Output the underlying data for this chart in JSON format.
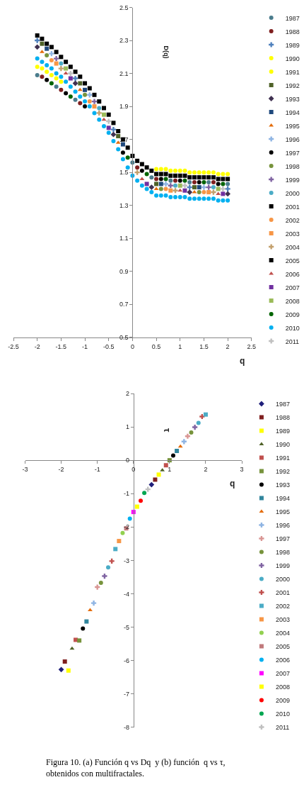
{
  "chart_data": [
    {
      "type": "scatter",
      "xlabel": "q",
      "ylabel": "D(q)",
      "xlim": [
        -2.5,
        2.5
      ],
      "ylim": [
        0.5,
        2.5
      ],
      "xticks": [
        -2.5,
        -2,
        -1.5,
        -1,
        -0.5,
        0,
        0.5,
        1,
        1.5,
        2,
        2.5
      ],
      "yticks": [
        0.5,
        0.7,
        0.9,
        1.1,
        1.3,
        1.5,
        1.7,
        1.9,
        2.1,
        2.3,
        2.5
      ],
      "legend": "right",
      "x": [
        -2,
        -1.9,
        -1.8,
        -1.7,
        -1.6,
        -1.5,
        -1.4,
        -1.3,
        -1.2,
        -1.1,
        -1,
        -0.9,
        -0.8,
        -0.7,
        -0.6,
        -0.5,
        -0.4,
        -0.3,
        -0.2,
        -0.1,
        0,
        0.1,
        0.2,
        0.3,
        0.4,
        0.5,
        0.6,
        0.7,
        0.8,
        0.9,
        1,
        1.1,
        1.2,
        1.3,
        1.4,
        1.5,
        1.6,
        1.7,
        1.8,
        1.9,
        2
      ],
      "series": [
        {
          "name": "1987",
          "color": "#4a7c8c",
          "marker": "circle",
          "x": [
            -2,
            -1.6,
            -1.2,
            0,
            0.4,
            0.8,
            1.2,
            1.6,
            2
          ],
          "values": [
            2.09,
            2.02,
            1.94,
            1.56,
            1.47,
            1.45,
            1.44,
            1.44,
            1.43
          ]
        },
        {
          "name": "1988",
          "color": "#7f1f1f",
          "marker": "circle",
          "x": [
            -1.9,
            -1.5,
            -1.1,
            0.1,
            0.5,
            0.9,
            1.3,
            1.7
          ],
          "values": [
            2.08,
            2.0,
            1.92,
            1.53,
            1.46,
            1.45,
            1.44,
            1.44
          ]
        },
        {
          "name": "1989",
          "color": "#4f81bd",
          "marker": "cross",
          "x": [
            -2,
            -1.2,
            -0.4,
            1.2,
            2
          ],
          "values": [
            2.3,
            2.07,
            1.76,
            1.41,
            1.4
          ]
        },
        {
          "name": "1990",
          "color": "#ffff00",
          "marker": "circle",
          "x": [
            -2,
            -1.8,
            -1.6,
            0.6,
            0.8,
            1,
            1.2,
            1.4,
            1.6,
            1.8,
            2
          ],
          "values": [
            2.14,
            2.11,
            2.07,
            1.52,
            1.51,
            1.51,
            1.5,
            1.5,
            1.5,
            1.49,
            1.49
          ]
        },
        {
          "name": "1991",
          "color": "#ffff00",
          "marker": "circle",
          "x": [
            -1.9,
            -1.7,
            -1.5,
            0.5,
            0.7,
            0.9,
            1.1,
            1.3,
            1.5,
            1.7,
            1.9
          ],
          "values": [
            2.13,
            2.09,
            2.05,
            1.52,
            1.52,
            1.51,
            1.51,
            1.5,
            1.5,
            1.5,
            1.49
          ]
        },
        {
          "name": "1992",
          "color": "#4f6228",
          "marker": "square",
          "x": [
            -1.9,
            -1.1,
            -0.3,
            0.5,
            1.3
          ],
          "values": [
            2.28,
            2.04,
            1.72,
            1.43,
            1.41
          ]
        },
        {
          "name": "1993",
          "color": "#403151",
          "marker": "diamond",
          "x": [
            -2,
            -1.2,
            -0.4,
            0.4,
            1.2,
            2
          ],
          "values": [
            2.26,
            2.04,
            1.73,
            1.41,
            1.38,
            1.37
          ]
        },
        {
          "name": "1994",
          "color": "#1f497d",
          "marker": "square",
          "x": [
            -1.8,
            -1,
            -0.2,
            0.6,
            1.4
          ],
          "values": [
            2.25,
            2.0,
            1.67,
            1.43,
            1.41
          ]
        },
        {
          "name": "1995",
          "color": "#e46c0a",
          "marker": "triangle",
          "x": [
            -1.9,
            -1.1,
            -0.3,
            0.5,
            1.3
          ],
          "values": [
            2.23,
            2.0,
            1.68,
            1.4,
            1.38
          ]
        },
        {
          "name": "1996",
          "color": "#8eb4e3",
          "marker": "cross",
          "x": [
            -1.7,
            -0.9,
            0.7,
            1.5
          ],
          "values": [
            2.22,
            1.97,
            1.43,
            1.41
          ]
        },
        {
          "name": "1997",
          "color": "#000000",
          "marker": "circle",
          "x": [
            -1.8,
            -1.4,
            -1,
            -0.2,
            0.2,
            0.6,
            1,
            1.4,
            1.8
          ],
          "values": [
            2.06,
            1.98,
            1.9,
            1.62,
            1.51,
            1.46,
            1.45,
            1.44,
            1.43
          ]
        },
        {
          "name": "1998",
          "color": "#77933c",
          "marker": "circle",
          "x": [
            -1.8,
            -1,
            0.6,
            1.4
          ],
          "values": [
            2.21,
            1.97,
            1.4,
            1.38
          ]
        },
        {
          "name": "1999",
          "color": "#8064a2",
          "marker": "cross",
          "x": [
            -1.6,
            -0.8,
            0.8,
            1.6
          ],
          "values": [
            2.19,
            1.93,
            1.42,
            1.41
          ]
        },
        {
          "name": "2000",
          "color": "#4bacc6",
          "marker": "circle",
          "x": [
            -1.5,
            -0.7,
            0.9,
            1.7
          ],
          "values": [
            2.16,
            1.89,
            1.42,
            1.41
          ]
        },
        {
          "name": "2001",
          "color": "#000000",
          "marker": "square",
          "x": [
            -2,
            -1.8,
            -1.6,
            -1.4,
            -1.2,
            -1,
            -0.8,
            -0.6,
            -0.4,
            -0.2,
            0,
            0.2,
            0.4,
            0.6,
            0.8,
            1,
            1.2,
            1.4,
            1.6,
            1.8,
            2
          ],
          "values": [
            2.33,
            2.28,
            2.23,
            2.17,
            2.11,
            2.04,
            1.97,
            1.89,
            1.8,
            1.7,
            1.6,
            1.55,
            1.51,
            1.49,
            1.48,
            1.48,
            1.47,
            1.47,
            1.47,
            1.46,
            1.46
          ]
        },
        {
          "name": "2002",
          "color": "#f79646",
          "marker": "circle",
          "x": [
            -1.7,
            -0.9,
            0.7,
            1.5
          ],
          "values": [
            2.18,
            1.93,
            1.4,
            1.38
          ]
        },
        {
          "name": "2003",
          "color": "#f79646",
          "marker": "square",
          "x": [
            -1.6,
            -0.8,
            0.8,
            1.6
          ],
          "values": [
            2.16,
            1.9,
            1.39,
            1.38
          ]
        },
        {
          "name": "2004",
          "color": "#c3a06c",
          "marker": "cross",
          "x": [
            -1.5,
            -0.7,
            0.1,
            0.9,
            1.7
          ],
          "values": [
            2.13,
            1.86,
            1.5,
            1.39,
            1.38
          ]
        },
        {
          "name": "2005",
          "color": "#000000",
          "marker": "square",
          "x": [
            -1.9,
            -1.7,
            -1.5,
            -1.3,
            -1.1,
            -0.9,
            -0.7,
            -0.5,
            -0.3,
            -0.1,
            0.1,
            0.3,
            0.5,
            0.7,
            0.9,
            1.1,
            1.3,
            1.5,
            1.7,
            1.9
          ],
          "values": [
            2.31,
            2.26,
            2.2,
            2.14,
            2.08,
            2.01,
            1.93,
            1.85,
            1.75,
            1.65,
            1.57,
            1.53,
            1.49,
            1.49,
            1.48,
            1.48,
            1.47,
            1.47,
            1.47,
            1.46
          ]
        },
        {
          "name": "2006",
          "color": "#c0504d",
          "marker": "triangle",
          "x": [
            -1.4,
            -0.6,
            0.2,
            1,
            1.8
          ],
          "values": [
            2.1,
            1.82,
            1.46,
            1.39,
            1.37
          ]
        },
        {
          "name": "2007",
          "color": "#7030a0",
          "marker": "square",
          "x": [
            -1.3,
            -0.5,
            0.3,
            1.1,
            1.9
          ],
          "values": [
            2.07,
            1.77,
            1.43,
            1.39,
            1.37
          ]
        },
        {
          "name": "2008",
          "color": "#9bbb59",
          "marker": "square",
          "x": [
            -1.4,
            -0.6,
            1,
            1.8
          ],
          "values": [
            2.13,
            1.85,
            1.42,
            1.4
          ]
        },
        {
          "name": "2009",
          "color": "#006400",
          "marker": "circle",
          "x": [
            -1.7,
            -1.3,
            -0.1,
            0.3,
            0.7,
            1.1,
            1.5,
            1.9
          ],
          "values": [
            2.04,
            1.96,
            1.59,
            1.49,
            1.46,
            1.45,
            1.44,
            1.43
          ]
        },
        {
          "name": "2010",
          "color": "#00b0f0",
          "marker": "circle",
          "values": [
            2.19,
            2.17,
            2.15,
            2.13,
            2.1,
            2.08,
            2.05,
            2.02,
            1.99,
            1.96,
            1.93,
            1.9,
            1.86,
            1.82,
            1.78,
            1.74,
            1.69,
            1.64,
            1.58,
            1.53,
            1.48,
            1.45,
            1.42,
            1.4,
            1.38,
            1.36,
            1.36,
            1.36,
            1.35,
            1.35,
            1.35,
            1.35,
            1.34,
            1.34,
            1.34,
            1.34,
            1.34,
            1.34,
            1.33,
            1.33,
            1.33
          ]
        },
        {
          "name": "2011",
          "color": "#c0c0c0",
          "marker": "cross",
          "x": [
            -1.3,
            -0.5,
            1.1,
            1.9
          ],
          "values": [
            2.1,
            1.81,
            1.42,
            1.4
          ]
        }
      ]
    },
    {
      "type": "scatter",
      "xlabel": "q",
      "ylabel": "τ",
      "xlim": [
        -3,
        3
      ],
      "ylim": [
        -8,
        2
      ],
      "xticks": [
        -3,
        -2,
        -1,
        0,
        1,
        2,
        3
      ],
      "yticks": [
        -8,
        -7,
        -6,
        -5,
        -4,
        -3,
        -2,
        -1,
        0,
        1,
        2
      ],
      "legend": "right",
      "annotations": [
        "Figura 10. (a) Función q vs Dq  y (b) función  q vs τ, obtenidos con multifractales."
      ],
      "series": [
        {
          "name": "1987",
          "color": "#1f1f7a",
          "marker": "diamond",
          "x": [
            -2,
            0.5
          ],
          "values": [
            -6.27,
            -0.73
          ]
        },
        {
          "name": "1988",
          "color": "#7f1f1f",
          "marker": "square",
          "x": [
            -1.9,
            0.6
          ],
          "values": [
            -6.03,
            -0.58
          ]
        },
        {
          "name": "1989",
          "color": "#ffff00",
          "marker": "square",
          "x": [
            -1.8,
            0.7
          ],
          "values": [
            -6.3,
            -0.43
          ]
        },
        {
          "name": "1990",
          "color": "#4f6228",
          "marker": "triangle",
          "x": [
            -1.7,
            0.8
          ],
          "values": [
            -5.64,
            -0.3
          ]
        },
        {
          "name": "1991",
          "color": "#c0504d",
          "marker": "square",
          "x": [
            -1.6,
            0.9
          ],
          "values": [
            -5.38,
            -0.15
          ]
        },
        {
          "name": "1992",
          "color": "#77933c",
          "marker": "square",
          "x": [
            -1.5,
            1
          ],
          "values": [
            -5.4,
            0
          ]
        },
        {
          "name": "1993",
          "color": "#000000",
          "marker": "circle",
          "x": [
            -1.4,
            1.1
          ],
          "values": [
            -5.04,
            0.14
          ]
        },
        {
          "name": "1994",
          "color": "#31859c",
          "marker": "square",
          "x": [
            -1.3,
            1.2
          ],
          "values": [
            -4.83,
            0.28
          ]
        },
        {
          "name": "1995",
          "color": "#e46c0a",
          "marker": "triangle",
          "x": [
            -1.2,
            1.3
          ],
          "values": [
            -4.49,
            0.41
          ]
        },
        {
          "name": "1996",
          "color": "#8eb4e3",
          "marker": "cross",
          "x": [
            -1.1,
            1.4
          ],
          "values": [
            -4.28,
            0.56
          ]
        },
        {
          "name": "1997",
          "color": "#d99694",
          "marker": "cross",
          "x": [
            -1,
            1.5
          ],
          "values": [
            -3.8,
            0.72
          ]
        },
        {
          "name": "1998",
          "color": "#77933c",
          "marker": "circle",
          "x": [
            -0.9,
            1.6
          ],
          "values": [
            -3.67,
            0.83
          ]
        },
        {
          "name": "1999",
          "color": "#8064a2",
          "marker": "cross",
          "x": [
            -0.8,
            1.7
          ],
          "values": [
            -3.47,
            0.99
          ]
        },
        {
          "name": "2000",
          "color": "#4bacc6",
          "marker": "circle",
          "x": [
            -0.7,
            1.8
          ],
          "values": [
            -3.21,
            1.12
          ]
        },
        {
          "name": "2001",
          "color": "#c0504d",
          "marker": "cross",
          "x": [
            -0.6,
            1.9
          ],
          "values": [
            -3.02,
            1.31
          ]
        },
        {
          "name": "2002",
          "color": "#4bacc6",
          "marker": "square",
          "x": [
            -0.5,
            2
          ],
          "values": [
            -2.66,
            1.37
          ]
        },
        {
          "name": "2003",
          "color": "#f79646",
          "marker": "square",
          "x": [
            -0.4
          ],
          "values": [
            -2.42
          ]
        },
        {
          "name": "2004",
          "color": "#92d050",
          "marker": "circle",
          "x": [
            -0.3
          ],
          "values": [
            -2.18
          ]
        },
        {
          "name": "2005",
          "color": "#c0797b",
          "marker": "square",
          "x": [
            -0.2
          ],
          "values": [
            -2.04
          ]
        },
        {
          "name": "2006",
          "color": "#00b0f0",
          "marker": "circle",
          "x": [
            -0.1
          ],
          "values": [
            -1.75
          ]
        },
        {
          "name": "2007",
          "color": "#ff00ff",
          "marker": "square",
          "x": [
            0
          ],
          "values": [
            -1.55
          ]
        },
        {
          "name": "2008",
          "color": "#ffff00",
          "marker": "square",
          "x": [
            0.1
          ],
          "values": [
            -1.39
          ]
        },
        {
          "name": "2009",
          "color": "#ff0000",
          "marker": "circle",
          "x": [
            0.2
          ],
          "values": [
            -1.21
          ]
        },
        {
          "name": "2010",
          "color": "#00a651",
          "marker": "circle",
          "x": [
            0.3
          ],
          "values": [
            -0.98
          ]
        },
        {
          "name": "2011",
          "color": "#c0c0c0",
          "marker": "cross",
          "x": [
            0.4
          ],
          "values": [
            -0.87
          ]
        }
      ]
    }
  ]
}
